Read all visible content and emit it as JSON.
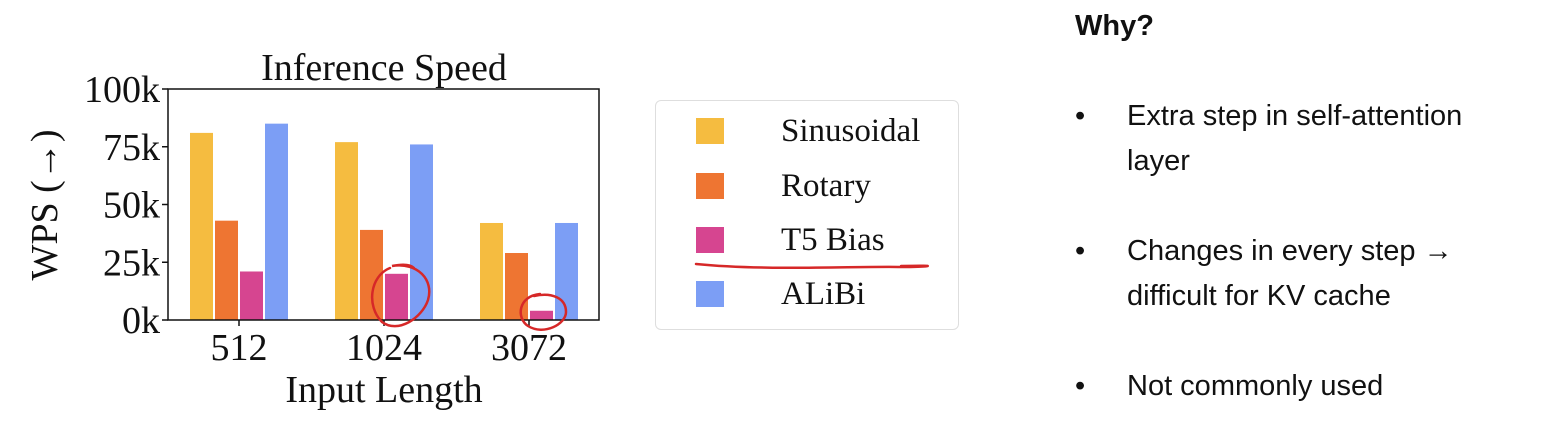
{
  "chart_data": {
    "type": "bar",
    "title": "Inference Speed",
    "xlabel": "Input Length",
    "ylabel": "WPS (→)",
    "categories": [
      "512",
      "1024",
      "3072"
    ],
    "series": [
      {
        "name": "Sinusoidal",
        "color": "#F5BC40",
        "values": [
          81,
          77,
          42
        ]
      },
      {
        "name": "Rotary",
        "color": "#EE7532",
        "values": [
          43,
          39,
          29
        ]
      },
      {
        "name": "T5 Bias",
        "color": "#D64590",
        "values": [
          21,
          20,
          4
        ]
      },
      {
        "name": "ALiBi",
        "color": "#7C9EF5",
        "values": [
          85,
          76,
          42
        ]
      }
    ],
    "ylim": [
      0,
      100
    ],
    "yticks": [
      0,
      25,
      50,
      75,
      100
    ],
    "ytick_labels": [
      "0k",
      "25k",
      "50k",
      "75k",
      "100k"
    ],
    "legend_placement": "right",
    "grid": false,
    "annotation_color": "#D62828"
  },
  "notes": {
    "title": "Why?",
    "bullet_glyph": "•",
    "bullets": [
      {
        "lines": [
          "Extra step in self-attention",
          "layer"
        ]
      },
      {
        "lines": [
          "Changes in every step →",
          "difficult for KV cache"
        ]
      },
      {
        "lines": [
          "Not commonly used"
        ]
      }
    ]
  }
}
